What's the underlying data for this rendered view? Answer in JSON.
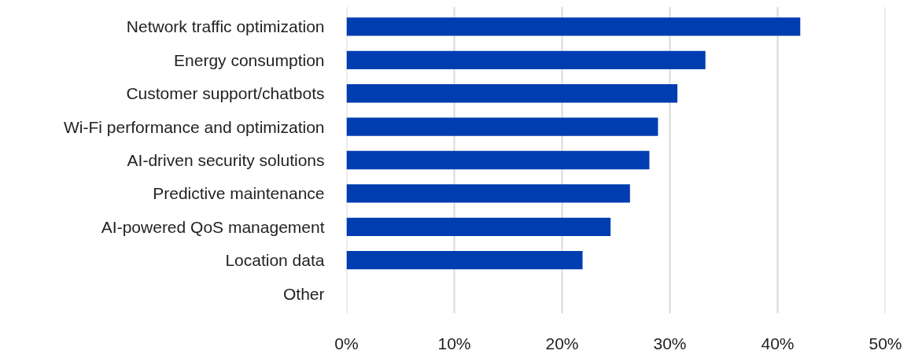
{
  "chart_data": {
    "type": "bar",
    "orientation": "horizontal",
    "categories": [
      "Network traffic optimization",
      "Energy consumption",
      "Customer support/chatbots",
      "Wi-Fi performance and optimization",
      "AI-driven security solutions",
      "Predictive maintenance",
      "AI-powered QoS management",
      "Location data",
      "Other"
    ],
    "values": [
      42.1,
      33.3,
      30.7,
      28.9,
      28.1,
      26.3,
      24.5,
      21.9,
      0
    ],
    "color": "#003db0",
    "xlim": [
      0,
      50
    ],
    "xticks": [
      {
        "value": 0,
        "label": "0%"
      },
      {
        "value": 10,
        "label": "10%"
      },
      {
        "value": 20,
        "label": "20%"
      },
      {
        "value": 30,
        "label": "30%"
      },
      {
        "value": 40,
        "label": "40%"
      },
      {
        "value": 50,
        "label": "50%"
      }
    ],
    "grid": "x"
  }
}
